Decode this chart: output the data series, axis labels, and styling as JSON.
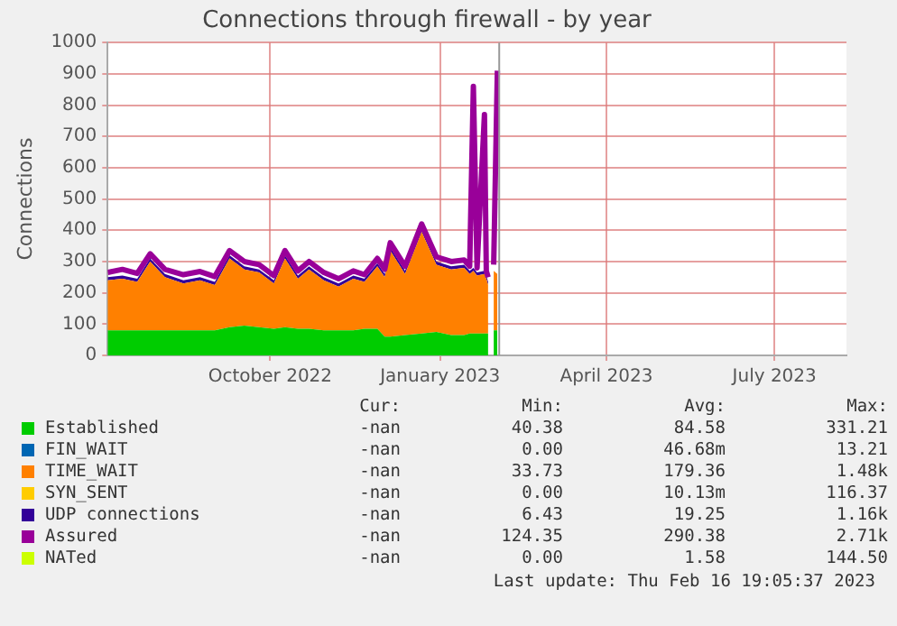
{
  "chart_data": {
    "type": "area",
    "title": "Connections through firewall - by year",
    "ylabel": "Connections",
    "stacked": true,
    "grid": true,
    "legend": "bottom",
    "x": [
      "2022-07-20",
      "2022-07-28",
      "2022-08-05",
      "2022-08-12",
      "2022-08-20",
      "2022-08-30",
      "2022-09-08",
      "2022-09-16",
      "2022-09-24",
      "2022-10-02",
      "2022-10-10",
      "2022-10-18",
      "2022-10-24",
      "2022-10-31",
      "2022-11-06",
      "2022-11-14",
      "2022-11-22",
      "2022-11-30",
      "2022-12-06",
      "2022-12-13",
      "2022-12-17",
      "2022-12-20",
      "2022-12-28",
      "2023-01-06",
      "2023-01-14",
      "2023-01-22",
      "2023-01-29",
      "2023-02-01",
      "2023-02-03",
      "2023-02-05",
      "2023-02-09",
      "2023-02-10",
      "2023-02-11",
      "2023-02-12",
      "2023-02-14",
      "2023-02-16"
    ],
    "xlim": [
      "2022-07-20",
      "2023-08-24"
    ],
    "xticks": [
      {
        "value": "2022-10-16",
        "label": "October 2022"
      },
      {
        "value": "2023-01-16",
        "label": "January 2023"
      },
      {
        "value": "2023-04-16",
        "label": "April 2023"
      },
      {
        "value": "2023-07-16",
        "label": "July 2023"
      }
    ],
    "ylim": [
      0,
      1000
    ],
    "yticks": [
      0,
      100,
      200,
      300,
      400,
      500,
      600,
      700,
      800,
      900,
      1000
    ],
    "ref_lines": [
      {
        "axis": "x",
        "value": "2023-02-17",
        "color": "#999999"
      }
    ],
    "series": [
      {
        "name": "Established",
        "type": "area",
        "color": "#00cc00",
        "values": [
          80,
          80,
          80,
          80,
          80,
          80,
          80,
          80,
          90,
          95,
          90,
          85,
          90,
          85,
          85,
          80,
          80,
          80,
          85,
          85,
          60,
          60,
          65,
          70,
          75,
          65,
          65,
          70,
          70,
          70,
          70,
          70,
          70,
          null,
          80,
          80
        ]
      },
      {
        "name": "FIN_WAIT",
        "type": "area",
        "color": "#0066b3",
        "values": [
          null,
          null,
          null,
          null,
          null,
          null,
          null,
          null,
          null,
          null,
          null,
          null,
          null,
          null,
          null,
          null,
          null,
          null,
          null,
          null,
          null,
          null,
          null,
          null,
          null,
          null,
          null,
          null,
          null,
          null,
          null,
          null,
          null,
          null,
          null,
          null
        ]
      },
      {
        "name": "TIME_WAIT",
        "type": "area",
        "color": "#ff8000",
        "values": [
          160,
          165,
          155,
          220,
          170,
          150,
          160,
          145,
          220,
          180,
          175,
          145,
          220,
          160,
          190,
          160,
          140,
          165,
          150,
          200,
          190,
          275,
          195,
          325,
          215,
          210,
          215,
          190,
          200,
          185,
          190,
          175,
          155,
          null,
          190,
          180
        ]
      },
      {
        "name": "SYN_SENT",
        "type": "area",
        "color": "#ffcc00",
        "values": [
          null,
          null,
          null,
          null,
          null,
          null,
          null,
          null,
          null,
          null,
          null,
          null,
          null,
          null,
          null,
          null,
          null,
          null,
          null,
          null,
          null,
          null,
          null,
          null,
          null,
          null,
          null,
          null,
          null,
          null,
          null,
          null,
          null,
          null,
          null,
          null
        ]
      },
      {
        "name": "UDP connections",
        "type": "area",
        "color": "#330099",
        "values": [
          10,
          10,
          10,
          10,
          10,
          10,
          10,
          10,
          10,
          10,
          10,
          10,
          10,
          10,
          10,
          10,
          10,
          10,
          10,
          10,
          10,
          10,
          10,
          10,
          10,
          10,
          10,
          10,
          10,
          10,
          10,
          10,
          10,
          null,
          null,
          null
        ]
      },
      {
        "name": "Assured",
        "type": "line",
        "color": "#990099",
        "values": [
          265,
          275,
          262,
          325,
          275,
          258,
          268,
          252,
          335,
          300,
          290,
          255,
          335,
          270,
          300,
          265,
          245,
          270,
          258,
          310,
          275,
          360,
          285,
          420,
          315,
          300,
          305,
          285,
          860,
          280,
          770,
          270,
          250,
          null,
          290,
          910
        ]
      },
      {
        "name": "NATed",
        "type": "area",
        "color": "#ccff00",
        "values": [
          null,
          null,
          null,
          null,
          null,
          null,
          null,
          null,
          null,
          null,
          null,
          null,
          null,
          null,
          null,
          null,
          null,
          null,
          null,
          null,
          null,
          null,
          null,
          null,
          null,
          null,
          null,
          null,
          null,
          null,
          null,
          null,
          null,
          null,
          null,
          null
        ]
      }
    ],
    "annotations": [
      "Cur:",
      "Min:",
      "Avg:",
      "Max:",
      "-nan",
      "40.38",
      "84.58",
      "331.21",
      "-nan",
      "0.00",
      "46.68m",
      "13.21",
      "-nan",
      "33.73",
      "179.36",
      "1.48k",
      "-nan",
      "0.00",
      "10.13m",
      "116.37",
      "-nan",
      "6.43",
      "19.25",
      "1.16k",
      "-nan",
      "124.35",
      "290.38",
      "2.71k",
      "-nan",
      "0.00",
      "1.58",
      "144.50",
      "Last update: Thu Feb 16 19:05:37 2023"
    ]
  }
}
